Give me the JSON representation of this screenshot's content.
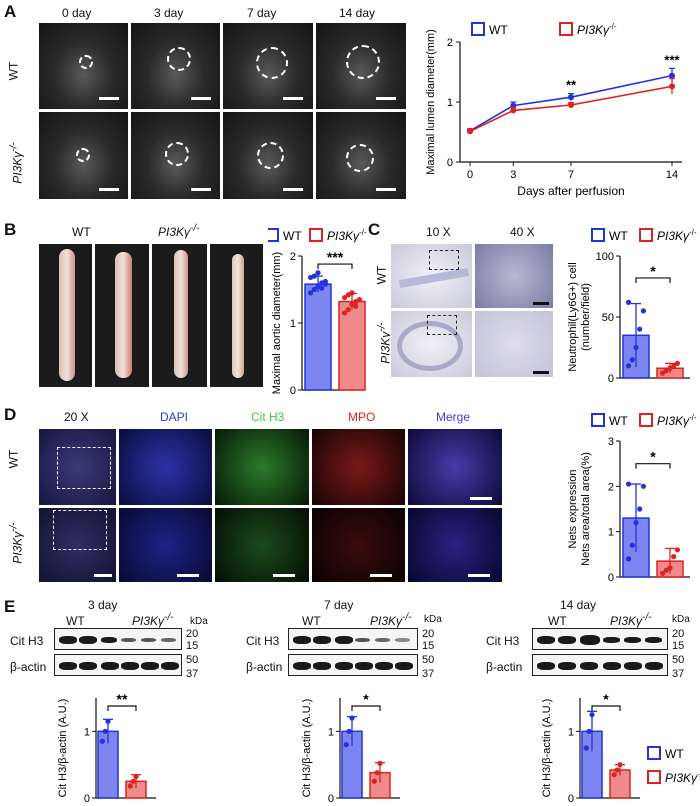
{
  "panel_letters": [
    "A",
    "B",
    "C",
    "D",
    "E"
  ],
  "panelA": {
    "columns": [
      "0 day",
      "3 day",
      "7 day",
      "14 day"
    ],
    "rows": [
      "WT",
      "PI3Kγ"
    ],
    "row_superscript": "-/-"
  },
  "panelB": {
    "image_labels": [
      "WT",
      "PI3Kγ"
    ],
    "superscript": "-/-"
  },
  "panelC": {
    "columns": [
      "10 X",
      "40 X"
    ],
    "rows": [
      "WT",
      "PI3Kγ"
    ],
    "superscript": "-/-"
  },
  "panelD": {
    "columns": [
      "20 X",
      "DAPI",
      "Cit H3",
      "MPO",
      "Merge"
    ],
    "rows": [
      "WT",
      "PI3Kγ"
    ],
    "superscript": "-/-",
    "column_colors": [
      "#111111",
      "#2b3bd6",
      "#3cc93c",
      "#e02020",
      "#3b3bd6"
    ]
  },
  "panelE": {
    "blots": [
      {
        "title": "3 day",
        "groups": [
          "WT",
          "PI3Kγ"
        ],
        "superscript": "-/-",
        "rows": [
          "Cit H3",
          "β-actin"
        ],
        "kda_label": "kDa",
        "kda": [
          "20",
          "15",
          "50",
          "37"
        ]
      },
      {
        "title": "7 day",
        "groups": [
          "WT",
          "PI3Kγ"
        ],
        "superscript": "-/-",
        "rows": [
          "Cit H3",
          "β-actin"
        ],
        "kda_label": "kDa",
        "kda": [
          "20",
          "15",
          "50",
          "37"
        ]
      },
      {
        "title": "14 day",
        "groups": [
          "WT",
          "PI3Kγ"
        ],
        "superscript": "-/-",
        "rows": [
          "Cit H3",
          "β-actin"
        ],
        "kda_label": "kDa",
        "kda": [
          "20",
          "15",
          "50",
          "37"
        ]
      }
    ]
  },
  "colors": {
    "wt": "#2233dd",
    "ko": "#dd2222",
    "wt_fill": "#7c86ee",
    "ko_fill": "#ee8a8a"
  },
  "chart_data": [
    {
      "id": "A-line",
      "type": "line",
      "legend": [
        "WT",
        "PI3Kγ-/-"
      ],
      "x": [
        0,
        3,
        7,
        14
      ],
      "xlabel": "Days after perfusion",
      "ylabel": "Maximal lumen diameter(mm)",
      "ylim": [
        0,
        2
      ],
      "yticks": [
        "0",
        "1",
        "2"
      ],
      "xticks": [
        "0",
        "3",
        "7",
        "14"
      ],
      "series": [
        {
          "name": "WT",
          "values": [
            0.52,
            0.94,
            1.08,
            1.44
          ],
          "err": [
            0.03,
            0.06,
            0.06,
            0.12
          ]
        },
        {
          "name": "PI3Kγ-/-",
          "values": [
            0.51,
            0.86,
            0.95,
            1.26
          ],
          "err": [
            0.03,
            0.05,
            0.04,
            0.13
          ]
        }
      ],
      "annotations": [
        {
          "x": 7,
          "text": "**"
        },
        {
          "x": 14,
          "text": "***"
        }
      ]
    },
    {
      "id": "B-bar",
      "type": "bar",
      "legend": [
        "WT",
        "PI3Kγ-/-"
      ],
      "categories": [
        "WT",
        "PI3Kγ-/-"
      ],
      "values": [
        1.58,
        1.32
      ],
      "err": [
        0.12,
        0.12
      ],
      "ylabel": "Maximal aortic diameter(mm)",
      "ylim": [
        0,
        2
      ],
      "yticks": [
        "0",
        "1",
        "2"
      ],
      "sig": "***",
      "points": [
        [
          1.45,
          1.5,
          1.55,
          1.6,
          1.62,
          1.68,
          1.7,
          1.75,
          1.52,
          1.58
        ],
        [
          1.15,
          1.2,
          1.28,
          1.32,
          1.35,
          1.38,
          1.42,
          1.45,
          1.25
        ]
      ]
    },
    {
      "id": "C-bar",
      "type": "bar",
      "legend": [
        "WT",
        "PI3Kγ-/-"
      ],
      "categories": [
        "WT",
        "PI3Kγ-/-"
      ],
      "values": [
        35,
        8
      ],
      "err": [
        26,
        4
      ],
      "ylabel": "Neutrophil(Ly6G+) cell\n(number/field)",
      "ylim": [
        0,
        100
      ],
      "yticks": [
        "0",
        "50",
        "100"
      ],
      "sig": "*",
      "points": [
        [
          10,
          15,
          25,
          40,
          55,
          62
        ],
        [
          4,
          6,
          8,
          10,
          12
        ]
      ]
    },
    {
      "id": "D-bar",
      "type": "bar",
      "legend": [
        "WT",
        "PI3Kγ-/-"
      ],
      "categories": [
        "WT",
        "PI3Kγ-/-"
      ],
      "values": [
        1.3,
        0.35
      ],
      "err": [
        0.75,
        0.28
      ],
      "ylabel": "Nets expression\nNets area/total area(%)",
      "ylim": [
        0,
        3
      ],
      "yticks": [
        "0",
        "1",
        "2",
        "3"
      ],
      "sig": "*",
      "points": [
        [
          0.4,
          0.7,
          1.2,
          1.5,
          2.0,
          2.05
        ],
        [
          0.08,
          0.15,
          0.2,
          0.45,
          0.6
        ]
      ]
    },
    {
      "id": "E1-bar",
      "type": "bar",
      "categories": [
        "WT",
        "PI3Kγ-/-"
      ],
      "values": [
        1.0,
        0.25
      ],
      "err": [
        0.18,
        0.1
      ],
      "ylabel": "Cit H3/β-actin (A.U.)",
      "ylim": [
        0,
        1.5
      ],
      "yticks": [
        "0",
        "1"
      ],
      "sig": "**",
      "points": [
        [
          0.85,
          1.0,
          1.15
        ],
        [
          0.18,
          0.25,
          0.32
        ]
      ]
    },
    {
      "id": "E2-bar",
      "type": "bar",
      "categories": [
        "WT",
        "PI3Kγ-/-"
      ],
      "values": [
        1.0,
        0.38
      ],
      "err": [
        0.22,
        0.15
      ],
      "ylabel": "Cit H3/β-actin (A.U.)",
      "ylim": [
        0,
        1.5
      ],
      "yticks": [
        "0",
        "1"
      ],
      "sig": "*",
      "points": [
        [
          0.8,
          1.0,
          1.2
        ],
        [
          0.25,
          0.38,
          0.52
        ]
      ]
    },
    {
      "id": "E3-bar",
      "type": "bar",
      "legend": [
        "WT",
        "PI3Kγ-/-"
      ],
      "categories": [
        "WT",
        "PI3Kγ-/-"
      ],
      "values": [
        1.0,
        0.42
      ],
      "err": [
        0.3,
        0.08
      ],
      "ylabel": "Cit H3/β-actin (A.U.)",
      "ylim": [
        0,
        1.5
      ],
      "yticks": [
        "0",
        "1"
      ],
      "sig": "*",
      "points": [
        [
          0.75,
          1.0,
          1.25
        ],
        [
          0.35,
          0.42,
          0.5
        ]
      ]
    }
  ]
}
